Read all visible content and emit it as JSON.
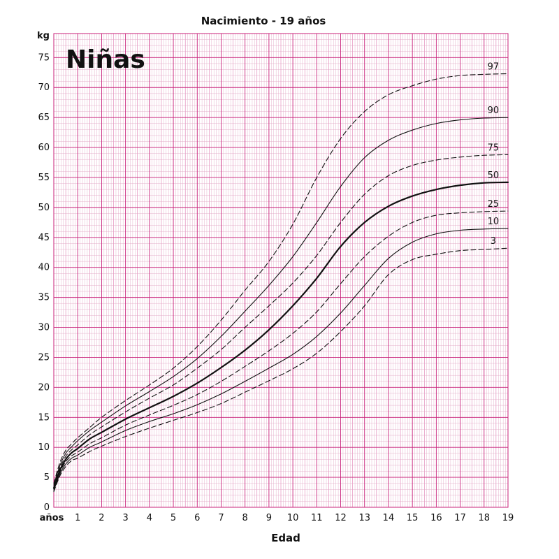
{
  "chart_data": {
    "type": "line",
    "title": "Nacimiento - 19 años",
    "panel_label": "Niñas",
    "xlabel": "Edad",
    "x_unit_label": "años",
    "ylabel": "kg",
    "xlim": [
      0,
      19
    ],
    "ylim": [
      0,
      79
    ],
    "x_ticks": [
      1,
      2,
      3,
      4,
      5,
      6,
      7,
      8,
      9,
      10,
      11,
      12,
      13,
      14,
      15,
      16,
      17,
      18,
      19
    ],
    "y_ticks": [
      0,
      5,
      10,
      15,
      20,
      25,
      30,
      35,
      40,
      45,
      50,
      55,
      60,
      65,
      70,
      75
    ],
    "grid": true,
    "grid_color": "#e0a0c0",
    "grid_major_color": "#c8207a",
    "x": [
      0,
      0.25,
      0.5,
      0.75,
      1,
      1.5,
      2,
      3,
      4,
      5,
      6,
      7,
      8,
      9,
      10,
      11,
      12,
      13,
      14,
      15,
      16,
      17,
      18,
      19
    ],
    "series": [
      {
        "name": "97",
        "style": "dashed",
        "values": [
          4.0,
          7.4,
          9.5,
          10.6,
          11.6,
          13.3,
          15.0,
          17.8,
          20.4,
          23.2,
          26.8,
          31.2,
          36.2,
          41.0,
          47.2,
          55.0,
          61.5,
          66.0,
          68.8,
          70.3,
          71.4,
          72.0,
          72.2,
          72.3
        ]
      },
      {
        "name": "90",
        "style": "solid",
        "values": [
          3.7,
          6.9,
          9.0,
          10.1,
          11.1,
          12.8,
          14.2,
          16.9,
          19.3,
          21.8,
          24.8,
          28.5,
          32.7,
          37.0,
          41.8,
          47.5,
          53.5,
          58.3,
          61.2,
          62.9,
          64.0,
          64.6,
          64.9,
          65.0
        ]
      },
      {
        "name": "75",
        "style": "dashed",
        "values": [
          3.4,
          6.5,
          8.5,
          9.6,
          10.4,
          12.1,
          13.4,
          15.9,
          18.2,
          20.4,
          23.2,
          26.3,
          30.0,
          33.6,
          37.4,
          42.0,
          47.5,
          52.2,
          55.3,
          57.0,
          57.9,
          58.4,
          58.7,
          58.8
        ]
      },
      {
        "name": "50",
        "style": "bold",
        "values": [
          3.2,
          6.1,
          8.0,
          9.1,
          9.8,
          11.4,
          12.5,
          14.7,
          16.6,
          18.5,
          20.7,
          23.3,
          26.2,
          29.6,
          33.6,
          38.2,
          43.5,
          47.5,
          50.2,
          51.9,
          53.0,
          53.7,
          54.1,
          54.2
        ]
      },
      {
        "name": "25",
        "style": "dashed",
        "values": [
          3.0,
          5.8,
          7.6,
          8.6,
          9.2,
          10.6,
          11.6,
          13.7,
          15.4,
          17.0,
          18.8,
          21.0,
          23.5,
          26.1,
          29.0,
          32.6,
          37.3,
          41.8,
          45.2,
          47.5,
          48.7,
          49.1,
          49.3,
          49.4
        ]
      },
      {
        "name": "10",
        "style": "solid",
        "values": [
          2.8,
          5.5,
          7.2,
          8.2,
          8.7,
          10.0,
          10.9,
          12.8,
          14.3,
          15.6,
          17.1,
          18.9,
          21.0,
          23.2,
          25.5,
          28.5,
          32.4,
          37.0,
          41.5,
          44.2,
          45.6,
          46.2,
          46.4,
          46.5
        ]
      },
      {
        "name": "3",
        "style": "dashed",
        "values": [
          2.6,
          5.2,
          6.8,
          7.8,
          8.2,
          9.3,
          10.2,
          11.8,
          13.2,
          14.5,
          15.8,
          17.3,
          19.2,
          21.1,
          23.1,
          25.7,
          29.3,
          33.6,
          38.8,
          41.3,
          42.2,
          42.8,
          43.0,
          43.2
        ]
      }
    ]
  }
}
